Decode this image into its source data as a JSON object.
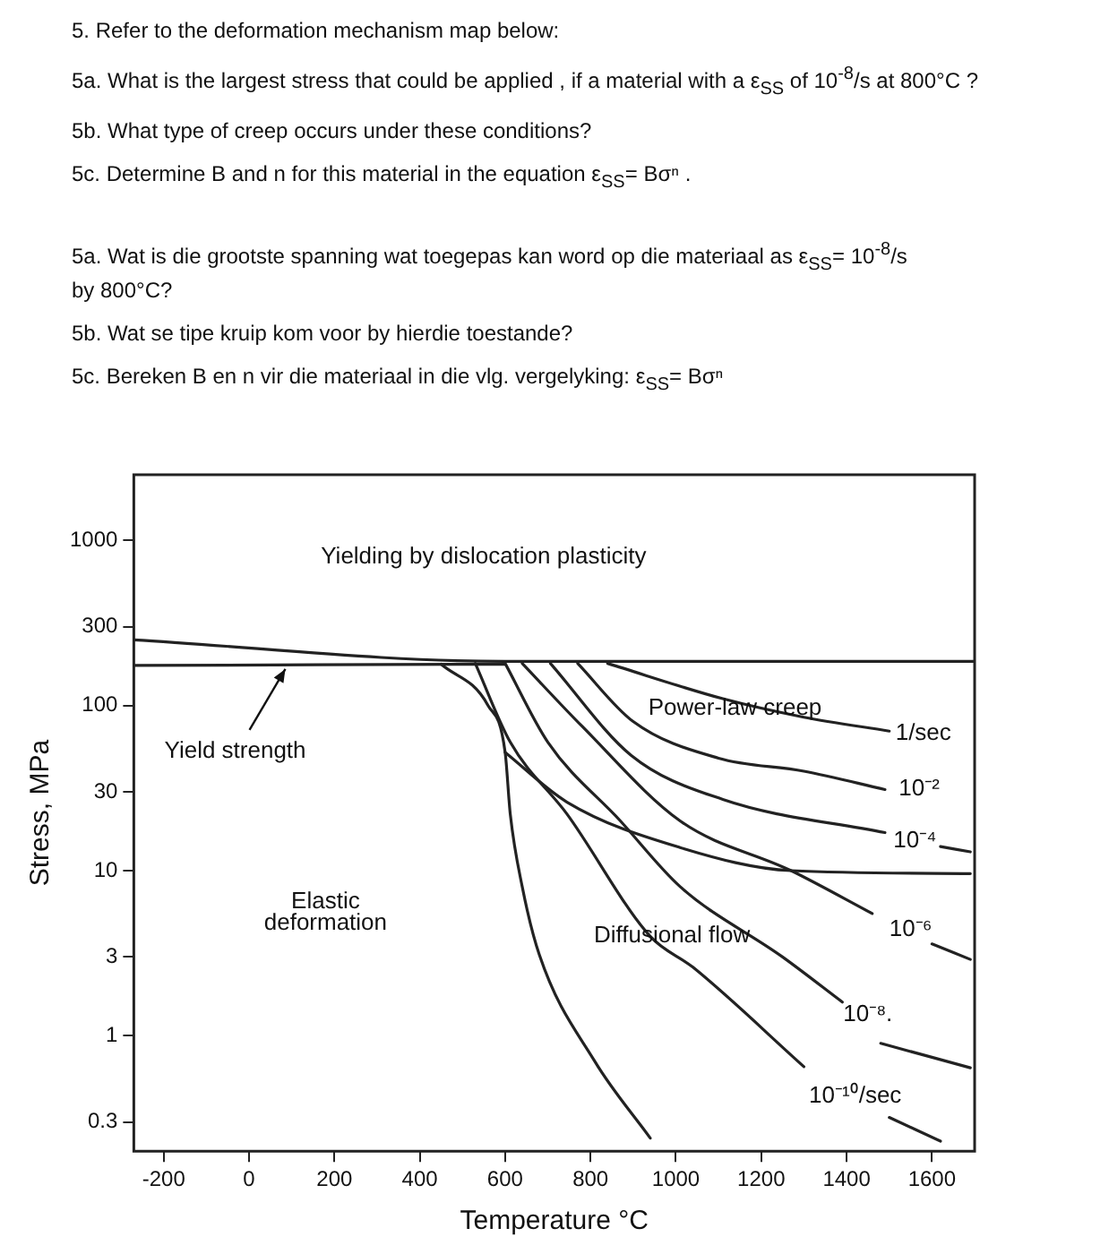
{
  "chart_data": {
    "type": "line",
    "xlabel": "Temperature °C",
    "ylabel": "Stress, MPa",
    "log": "y",
    "xlim": [
      -270,
      1700
    ],
    "ylim": [
      0.2,
      2500
    ],
    "xticks": [
      -200,
      0,
      200,
      400,
      600,
      800,
      1000,
      1200,
      1400,
      1600
    ],
    "yticks": [
      0.3,
      1,
      3,
      10,
      30,
      100,
      300,
      1000
    ],
    "legend": false,
    "grid": false,
    "marker": "none",
    "line_style": "solid",
    "series": [
      {
        "color": "#222222",
        "x": [
          -270,
          600,
          1700
        ],
        "values": [
          250,
          185,
          185
        ]
      },
      {
        "color": "#222222",
        "x": [
          -270,
          600
        ],
        "values": [
          175,
          178
        ]
      },
      {
        "color": "#222222",
        "x": [
          450,
          560,
          600,
          612,
          640,
          680,
          810,
          940
        ],
        "values": [
          178,
          100,
          52,
          22,
          8,
          3.1,
          0.7,
          0.24
        ]
      },
      {
        "color": "#222222",
        "x": [
          600,
          745,
          1010,
          1270,
          1690
        ],
        "values": [
          52,
          26,
          13.8,
          10,
          9.6
        ]
      },
      {
        "color": "#222222",
        "x": [
          840,
          1110,
          1300,
          1500
        ],
        "values": [
          180,
          110,
          85,
          70
        ]
      },
      {
        "color": "#222222",
        "x": [
          770,
          900,
          1100,
          1300,
          1490
        ],
        "values": [
          180,
          80,
          48,
          40,
          31
        ]
      },
      {
        "color": "#222222",
        "x": [
          706,
          895,
          1110,
          1490,
          1500,
          1620,
          1690
        ],
        "values": [
          180,
          50,
          27,
          17,
          null,
          14,
          13
        ]
      },
      {
        "color": "#222222",
        "x": [
          640,
          780,
          1010,
          1270,
          1460,
          1500,
          1600,
          1690
        ],
        "values": [
          180,
          75,
          20,
          10,
          5.5,
          null,
          3.6,
          2.9
        ]
      },
      {
        "color": "#222222",
        "x": [
          600,
          700,
          870,
          1010,
          1250,
          1390,
          1420,
          1480,
          1690
        ],
        "values": [
          180,
          60,
          20,
          8,
          3,
          1.6,
          null,
          0.9,
          0.64
        ]
      },
      {
        "color": "#222222",
        "x": [
          530,
          612,
          745,
          940,
          1040,
          1300,
          1350,
          1500,
          1620
        ],
        "values": [
          180,
          60,
          22,
          4,
          2.6,
          0.65,
          null,
          0.32,
          0.23
        ]
      }
    ],
    "annotations": [
      "5. Refer to the deformation mechanism map below:",
      "5a. What is the largest stress that could be applied , if a material with a ε$_{SS}$ of 10$^{-8}$/s at  800°C ?",
      "5b. What type of creep occurs under these conditions?",
      "5c.  Determine B and n for this material in the equation ε$_{SS}$= Bσⁿ .",
      "5a.  Wat is die grootste spanning wat toegepas kan word op die materiaal as ε$_{SS}$= 10$^{-8}$/s  by 800°C?",
      "5b. Wat se tipe kruip kom voor by hierdie toestande?",
      "5c.  Bereken B en n vir die materiaal in die vlg. vergelyking:  ε$_{SS}$= Bσⁿ",
      {
        "text": "Yield strength",
        "x": 85,
        "y": 175
      },
      "Yielding by dislocation plasticity",
      "Power-law creep",
      "Elastic",
      "deformation",
      "Diffusional flow",
      "1/sec",
      "10⁻²",
      "10⁻⁴",
      "10⁻⁶",
      "10⁻⁸.",
      "10⁻¹⁰/sec"
    ]
  }
}
